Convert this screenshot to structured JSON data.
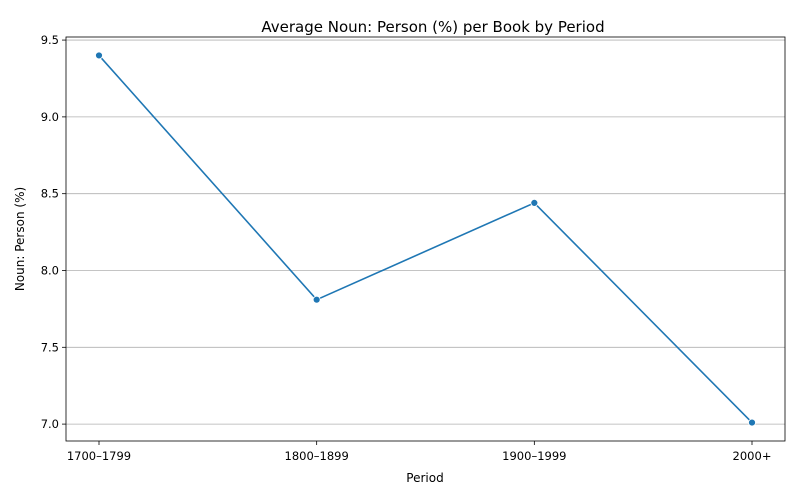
{
  "chart_data": {
    "type": "line",
    "title": "Average Noun: Person (%) per Book by Period",
    "xlabel": "Period",
    "ylabel": "Noun: Person (%)",
    "categories": [
      "1700–1799",
      "1800–1899",
      "1900–1999",
      "2000+"
    ],
    "values": [
      9.4,
      7.81,
      8.44,
      7.01
    ],
    "ylim": [
      6.89,
      9.52
    ],
    "yticks": [
      "7.0",
      "7.5",
      "8.0",
      "8.5",
      "9.0",
      "9.5"
    ],
    "ytick_values": [
      7.0,
      7.5,
      8.0,
      8.5,
      9.0,
      9.5
    ],
    "grid": "horizontal",
    "line_color": "#1f77b4",
    "grid_color": "#b0b0b0"
  }
}
